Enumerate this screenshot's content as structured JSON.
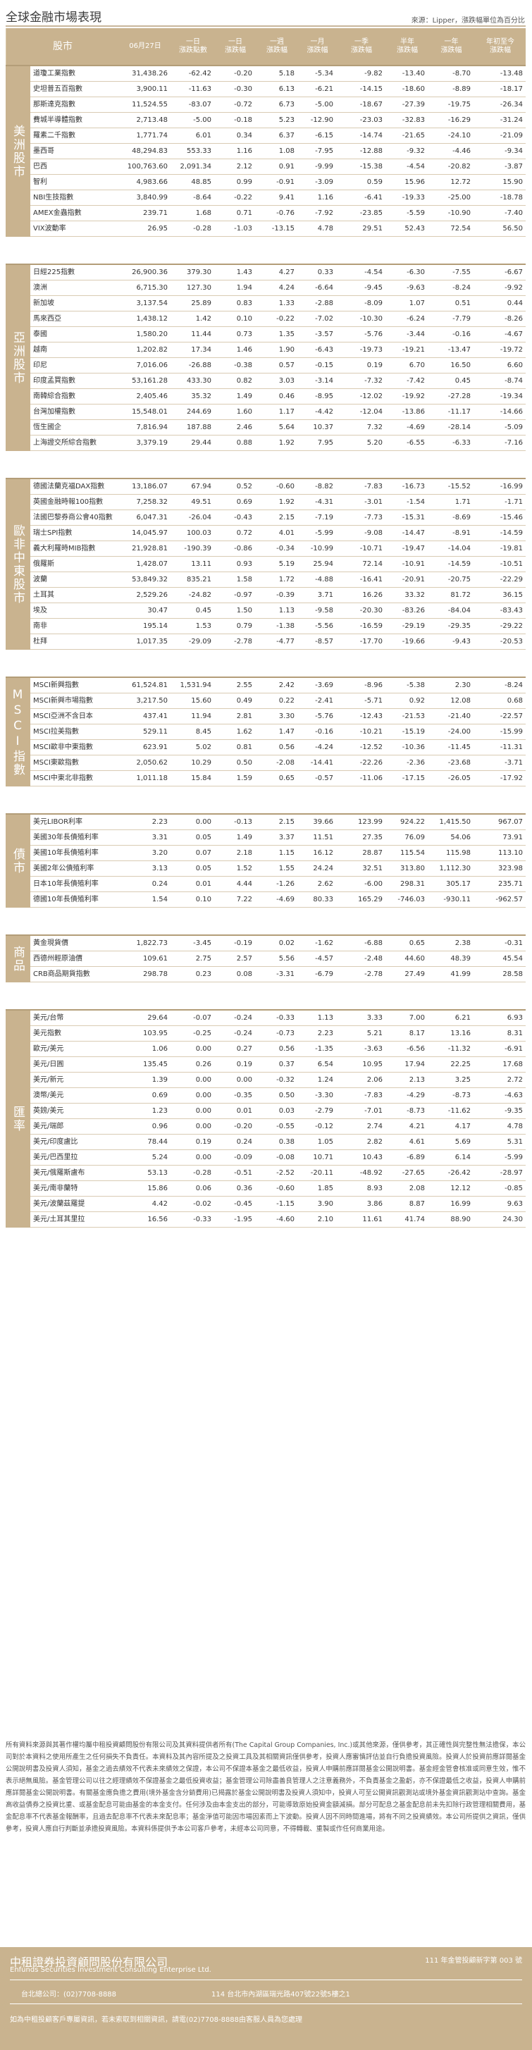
{
  "header": {
    "title": "全球金融市場表現",
    "source": "來源：Lipper，漲跌幅單位為百分比"
  },
  "columns": {
    "name": "股市",
    "price": "06月27日",
    "d1": "一日\n漲跌點數",
    "d1p": "一日\n漲跌幅",
    "w": "一週\n漲跌幅",
    "m": "一月\n漲跌幅",
    "m3": "三月\n漲跌幅",
    "y1": "一季\n漲跌幅",
    "h": "半年\n漲跌幅",
    "y2": "一年\n漲跌幅",
    "ytd": "年初至今\n漲跌幅"
  },
  "sections": [
    {
      "label": "美洲股市",
      "rows": [
        [
          "道瓊工業指數",
          "31,438.26",
          "-62.42",
          "-0.20",
          "5.18",
          "-5.34",
          "-9.82",
          "-13.40",
          "-8.70",
          "-13.48"
        ],
        [
          "史坦普五百指數",
          "3,900.11",
          "-11.63",
          "-0.30",
          "6.13",
          "-6.21",
          "-14.15",
          "-18.60",
          "-8.89",
          "-18.17"
        ],
        [
          "那斯達克指數",
          "11,524.55",
          "-83.07",
          "-0.72",
          "6.73",
          "-5.00",
          "-18.67",
          "-27.39",
          "-19.75",
          "-26.34"
        ],
        [
          "費城半導體指數",
          "2,713.48",
          "-5.00",
          "-0.18",
          "5.23",
          "-12.90",
          "-23.03",
          "-32.83",
          "-16.29",
          "-31.24"
        ],
        [
          "羅素二千指數",
          "1,771.74",
          "6.01",
          "0.34",
          "6.37",
          "-6.15",
          "-14.74",
          "-21.65",
          "-24.10",
          "-21.09"
        ],
        [
          "墨西哥",
          "48,294.83",
          "553.33",
          "1.16",
          "1.08",
          "-7.95",
          "-12.88",
          "-9.32",
          "-4.46",
          "-9.34"
        ],
        [
          "巴西",
          "100,763.60",
          "2,091.34",
          "2.12",
          "0.91",
          "-9.99",
          "-15.38",
          "-4.54",
          "-20.82",
          "-3.87"
        ],
        [
          "智利",
          "4,983.66",
          "48.85",
          "0.99",
          "-0.91",
          "-3.09",
          "0.59",
          "15.96",
          "12.72",
          "15.90"
        ],
        [
          "NBI生技指數",
          "3,840.99",
          "-8.64",
          "-0.22",
          "9.41",
          "1.16",
          "-6.41",
          "-19.33",
          "-25.00",
          "-18.78"
        ],
        [
          "AMEX金蟲指數",
          "239.71",
          "1.68",
          "0.71",
          "-0.76",
          "-7.92",
          "-23.85",
          "-5.59",
          "-10.90",
          "-7.40"
        ],
        [
          "VIX波動率",
          "26.95",
          "-0.28",
          "-1.03",
          "-13.15",
          "4.78",
          "29.51",
          "52.43",
          "72.54",
          "56.50"
        ]
      ]
    },
    {
      "label": "亞洲股市",
      "rows": [
        [
          "日經225指數",
          "26,900.36",
          "379.30",
          "1.43",
          "4.27",
          "0.33",
          "-4.54",
          "-6.30",
          "-7.55",
          "-6.67"
        ],
        [
          "澳洲",
          "6,715.30",
          "127.30",
          "1.94",
          "4.24",
          "-6.64",
          "-9.45",
          "-9.63",
          "-8.24",
          "-9.92"
        ],
        [
          "新加坡",
          "3,137.54",
          "25.89",
          "0.83",
          "1.33",
          "-2.88",
          "-8.09",
          "1.07",
          "0.51",
          "0.44"
        ],
        [
          "馬來西亞",
          "1,438.12",
          "1.42",
          "0.10",
          "-0.22",
          "-7.02",
          "-10.30",
          "-6.24",
          "-7.79",
          "-8.26"
        ],
        [
          "泰國",
          "1,580.20",
          "11.44",
          "0.73",
          "1.35",
          "-3.57",
          "-5.76",
          "-3.44",
          "-0.16",
          "-4.67"
        ],
        [
          "越南",
          "1,202.82",
          "17.34",
          "1.46",
          "1.90",
          "-6.43",
          "-19.73",
          "-19.21",
          "-13.47",
          "-19.72"
        ],
        [
          "印尼",
          "7,016.06",
          "-26.88",
          "-0.38",
          "0.57",
          "-0.15",
          "0.19",
          "6.70",
          "16.50",
          "6.60"
        ],
        [
          "印度孟買指數",
          "53,161.28",
          "433.30",
          "0.82",
          "3.03",
          "-3.14",
          "-7.32",
          "-7.42",
          "0.45",
          "-8.74"
        ],
        [
          "南韓綜合指數",
          "2,405.46",
          "35.32",
          "1.49",
          "0.46",
          "-8.95",
          "-12.02",
          "-19.92",
          "-27.28",
          "-19.34"
        ],
        [
          "台灣加權指數",
          "15,548.01",
          "244.69",
          "1.60",
          "1.17",
          "-4.42",
          "-12.04",
          "-13.86",
          "-11.17",
          "-14.66"
        ],
        [
          "恆生國企",
          "7,816.94",
          "187.88",
          "2.46",
          "5.64",
          "10.37",
          "7.32",
          "-4.69",
          "-28.14",
          "-5.09"
        ],
        [
          "上海證交所綜合指數",
          "3,379.19",
          "29.44",
          "0.88",
          "1.92",
          "7.95",
          "5.20",
          "-6.55",
          "-6.33",
          "-7.16"
        ]
      ]
    },
    {
      "label": "歐非中東股市",
      "rows": [
        [
          "德國法蘭克福DAX指數",
          "13,186.07",
          "67.94",
          "0.52",
          "-0.60",
          "-8.82",
          "-7.83",
          "-16.73",
          "-15.52",
          "-16.99"
        ],
        [
          "英國金融時報100指數",
          "7,258.32",
          "49.51",
          "0.69",
          "1.92",
          "-4.31",
          "-3.01",
          "-1.54",
          "1.71",
          "-1.71"
        ],
        [
          "法國巴黎券商公會40指數",
          "6,047.31",
          "-26.04",
          "-0.43",
          "2.15",
          "-7.19",
          "-7.73",
          "-15.31",
          "-8.69",
          "-15.46"
        ],
        [
          "瑞士SPI指數",
          "14,045.97",
          "100.03",
          "0.72",
          "4.01",
          "-5.99",
          "-9.08",
          "-14.47",
          "-8.91",
          "-14.59"
        ],
        [
          "義大利羅時MIB指數",
          "21,928.81",
          "-190.39",
          "-0.86",
          "-0.34",
          "-10.99",
          "-10.71",
          "-19.47",
          "-14.04",
          "-19.81"
        ],
        [
          "俄羅斯",
          "1,428.07",
          "13.11",
          "0.93",
          "5.19",
          "25.94",
          "72.14",
          "-10.91",
          "-14.59",
          "-10.51"
        ],
        [
          "波蘭",
          "53,849.32",
          "835.21",
          "1.58",
          "1.72",
          "-4.88",
          "-16.41",
          "-20.91",
          "-20.75",
          "-22.29"
        ],
        [
          "土耳其",
          "2,529.26",
          "-24.82",
          "-0.97",
          "-0.39",
          "3.71",
          "16.26",
          "33.32",
          "81.72",
          "36.15"
        ],
        [
          "埃及",
          "30.47",
          "0.45",
          "1.50",
          "1.13",
          "-9.58",
          "-20.30",
          "-83.26",
          "-84.04",
          "-83.43"
        ],
        [
          "南非",
          "195.14",
          "1.53",
          "0.79",
          "-1.38",
          "-5.56",
          "-16.59",
          "-29.19",
          "-29.35",
          "-29.22"
        ],
        [
          "杜拜",
          "1,017.35",
          "-29.09",
          "-2.78",
          "-4.77",
          "-8.57",
          "-17.70",
          "-19.66",
          "-9.43",
          "-20.53"
        ]
      ]
    },
    {
      "label": "MSCI指數",
      "rows": [
        [
          "MSCI新興指數",
          "61,524.81",
          "1,531.94",
          "2.55",
          "2.42",
          "-3.69",
          "-8.96",
          "-5.38",
          "2.30",
          "-8.24"
        ],
        [
          "MSCI新興市場指數",
          "3,217.50",
          "15.60",
          "0.49",
          "0.22",
          "-2.41",
          "-5.71",
          "0.92",
          "12.08",
          "0.68"
        ],
        [
          "MSCI亞洲不含日本",
          "437.41",
          "11.94",
          "2.81",
          "3.30",
          "-5.76",
          "-12.43",
          "-21.53",
          "-21.40",
          "-22.57"
        ],
        [
          "MSCI拉美指數",
          "529.11",
          "8.45",
          "1.62",
          "1.47",
          "-0.16",
          "-10.21",
          "-15.19",
          "-24.00",
          "-15.99"
        ],
        [
          "MSCI歐非中東指數",
          "623.91",
          "5.02",
          "0.81",
          "0.56",
          "-4.24",
          "-12.52",
          "-10.36",
          "-11.45",
          "-11.31"
        ],
        [
          "MSCI東歐指數",
          "2,050.62",
          "10.29",
          "0.50",
          "-2.08",
          "-14.41",
          "-22.26",
          "-2.36",
          "-23.68",
          "-3.71"
        ],
        [
          "MSCI中東北非指數",
          "1,011.18",
          "15.84",
          "1.59",
          "0.65",
          "-0.57",
          "-11.06",
          "-17.15",
          "-26.05",
          "-17.92"
        ]
      ]
    },
    {
      "label": "債市",
      "rows": [
        [
          "美元LIBOR利率",
          "2.23",
          "0.00",
          "-0.13",
          "2.15",
          "39.66",
          "123.99",
          "924.22",
          "1,415.50",
          "967.07"
        ],
        [
          "美國30年長債殖利率",
          "3.31",
          "0.05",
          "1.49",
          "3.37",
          "11.51",
          "27.35",
          "76.09",
          "54.06",
          "73.91"
        ],
        [
          "美國10年長債殖利率",
          "3.20",
          "0.07",
          "2.18",
          "1.15",
          "16.12",
          "28.87",
          "115.54",
          "115.98",
          "113.10"
        ],
        [
          "美國2年公債殖利率",
          "3.13",
          "0.05",
          "1.52",
          "1.55",
          "24.24",
          "32.51",
          "313.80",
          "1,112.30",
          "323.98"
        ],
        [
          "日本10年長債殖利率",
          "0.24",
          "0.01",
          "4.44",
          "-1.26",
          "2.62",
          "-6.00",
          "298.31",
          "305.17",
          "235.71"
        ],
        [
          "德國10年長債殖利率",
          "1.54",
          "0.10",
          "7.22",
          "-4.69",
          "80.33",
          "165.29",
          "-746.03",
          "-930.11",
          "-962.57"
        ]
      ]
    },
    {
      "label": "商品",
      "rows": [
        [
          "黃金現貨價",
          "1,822.73",
          "-3.45",
          "-0.19",
          "0.02",
          "-1.62",
          "-6.88",
          "0.65",
          "2.38",
          "-0.31"
        ],
        [
          "西德州輕原油價",
          "109.61",
          "2.75",
          "2.57",
          "5.56",
          "-4.57",
          "-2.48",
          "44.60",
          "48.39",
          "45.54"
        ],
        [
          "CRB商品期貨指數",
          "298.78",
          "0.23",
          "0.08",
          "-3.31",
          "-6.79",
          "-2.78",
          "27.49",
          "41.99",
          "28.58"
        ]
      ]
    },
    {
      "label": "匯率",
      "rows": [
        [
          "美元/台幣",
          "29.64",
          "-0.07",
          "-0.24",
          "-0.33",
          "1.13",
          "3.33",
          "7.00",
          "6.21",
          "6.93"
        ],
        [
          "美元指數",
          "103.95",
          "-0.25",
          "-0.24",
          "-0.73",
          "2.23",
          "5.21",
          "8.17",
          "13.16",
          "8.31"
        ],
        [
          "歐元/美元",
          "1.06",
          "0.00",
          "0.27",
          "0.56",
          "-1.35",
          "-3.63",
          "-6.56",
          "-11.32",
          "-6.91"
        ],
        [
          "美元/日圓",
          "135.45",
          "0.26",
          "0.19",
          "0.37",
          "6.54",
          "10.95",
          "17.94",
          "22.25",
          "17.68"
        ],
        [
          "美元/新元",
          "1.39",
          "0.00",
          "0.00",
          "-0.32",
          "1.24",
          "2.06",
          "2.13",
          "3.25",
          "2.72"
        ],
        [
          "澳幣/美元",
          "0.69",
          "0.00",
          "-0.35",
          "0.50",
          "-3.30",
          "-7.83",
          "-4.29",
          "-8.73",
          "-4.63"
        ],
        [
          "英鎊/美元",
          "1.23",
          "0.00",
          "0.01",
          "0.03",
          "-2.79",
          "-7.01",
          "-8.73",
          "-11.62",
          "-9.35"
        ],
        [
          "美元/瑞郎",
          "0.96",
          "0.00",
          "-0.20",
          "-0.55",
          "-0.12",
          "2.74",
          "4.21",
          "4.17",
          "4.78"
        ],
        [
          "美元/印度盧比",
          "78.44",
          "0.19",
          "0.24",
          "0.38",
          "1.05",
          "2.82",
          "4.61",
          "5.69",
          "5.31"
        ],
        [
          "美元/巴西里拉",
          "5.24",
          "0.00",
          "-0.09",
          "-0.08",
          "10.71",
          "10.43",
          "-6.89",
          "6.14",
          "-5.99"
        ],
        [
          "美元/俄羅斯盧布",
          "53.13",
          "-0.28",
          "-0.51",
          "-2.52",
          "-20.11",
          "-48.92",
          "-27.65",
          "-26.42",
          "-28.97"
        ],
        [
          "美元/南非蘭特",
          "15.86",
          "0.06",
          "0.36",
          "-0.60",
          "1.85",
          "8.93",
          "2.08",
          "12.12",
          "-0.85"
        ],
        [
          "美元/波蘭茲羅提",
          "4.42",
          "-0.02",
          "-0.45",
          "-1.15",
          "3.90",
          "3.86",
          "8.87",
          "16.99",
          "9.63"
        ],
        [
          "美元/土耳其里拉",
          "16.56",
          "-0.33",
          "-1.95",
          "-4.60",
          "2.10",
          "11.61",
          "41.74",
          "88.90",
          "24.30"
        ]
      ]
    }
  ],
  "disclaimer": "所有資料來源與其著作權均屬中租投資顧問股份有限公司及其資料提供者所有(The Capital Group Companies, Inc.)或其他來源，僅供參考，其正確性與完整性無法擔保，本公司對於本資料之使用所產生之任何損失不負責任。本資料及其內容所提及之投資工具及其相關資訊僅供參考，投資人應審慎評估並自行負擔投資風險。投資人於投資前應詳閱基金公開說明書及投資人須知，基金之過去績效不代表未來績效之保證，本公司不保證本基金之最低收益，投資人申購前應詳閱基金公開說明書。基金經金管會核准或同意生效，惟不表示絕無風險。基金管理公司以往之經理績效不保證基金之最低投資收益；基金管理公司除盡善良管理人之注意義務外，不負責基金之盈虧，亦不保證最低之收益，投資人申購前應詳閱基金公開說明書。有關基金應負擔之費用(境外基金含分銷費用)已揭露於基金公開說明書及投資人須知中，投資人可至公開資訊觀測站或境外基金資訊觀測站中查詢。基金高收益債券之投資比重、或基金配息可能由基金的本金支付。任何涉及由本金支出的部分，可能導致原始投資金額減損。部分可配息之基金配息前未先扣除行政管理相關費用，基金配息率不代表基金報酬率，且過去配息率不代表未來配息率；基金淨值可能因市場因素而上下波動。投資人因不同時間進場，將有不同之投資績效。本公司所提供之資訊，僅供參考，投資人應自行判斷並承擔投資風險。本資料係提供予本公司客戶參考，未經本公司同意，不得轉載、重製或作任何商業用途。",
  "footer": {
    "company": "中租證券投資顧問股份有限公司",
    "company_en": "Enfunds Securities Investment Consulting Enterprise Ltd.",
    "license": "111 年金管投顧新字第 003 號",
    "tel": "台北總公司：(02)7708-8888",
    "address": "114 台北市內湖區瑞光路407號22號5樓之1",
    "note": "如為中租投顧客戶專屬資訊，若未索取到相關資訊，請電(02)7708-8888由客服人員為您處理"
  }
}
